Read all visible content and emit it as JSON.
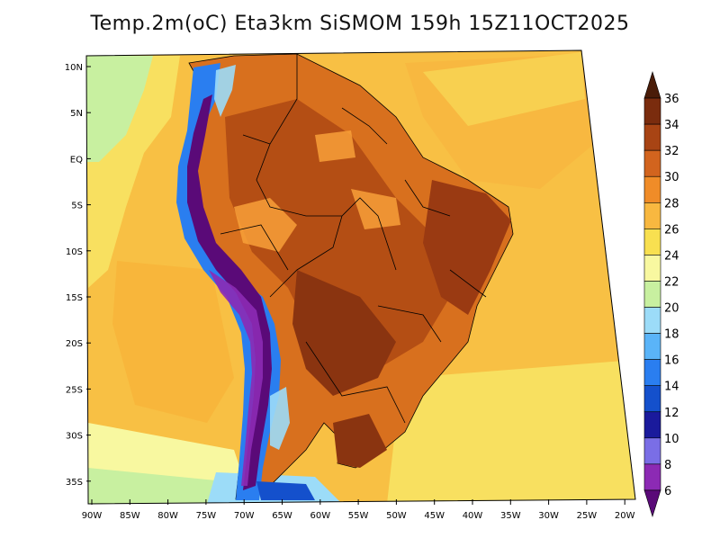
{
  "title": "Temp.2m(oC) Eta3km SiSMOM 159h 15Z11OCT2025",
  "latitude_labels": [
    "10N",
    "5N",
    "EQ",
    "5S",
    "10S",
    "15S",
    "20S",
    "25S",
    "30S",
    "35S"
  ],
  "longitude_labels": [
    "90W",
    "85W",
    "80W",
    "75W",
    "70W",
    "65W",
    "60W",
    "55W",
    "50W",
    "45W",
    "40W",
    "35W",
    "30W",
    "25W",
    "20W"
  ],
  "colorbar": {
    "labels": [
      "6",
      "8",
      "10",
      "12",
      "14",
      "16",
      "18",
      "20",
      "22",
      "24",
      "26",
      "28",
      "30",
      "32",
      "34",
      "36"
    ],
    "colors": [
      "#5a0a78",
      "#8c2ab4",
      "#7a6ee6",
      "#1a1a9c",
      "#1450cc",
      "#2a7ef0",
      "#5ab4f8",
      "#9cdcf8",
      "#c8f0a0",
      "#f8f8a0",
      "#f8e050",
      "#f8b840",
      "#f08c28",
      "#d2641e",
      "#a84414",
      "#7a2c0e",
      "#4a1c08"
    ]
  }
}
